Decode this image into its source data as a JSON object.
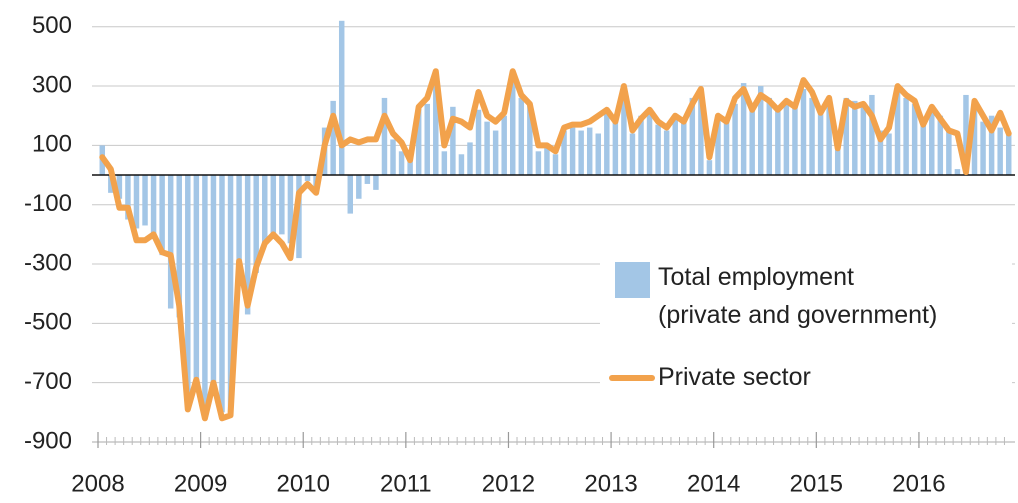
{
  "chart_data": {
    "type": "bar_line",
    "categories": [
      "2008",
      null,
      null,
      null,
      null,
      null,
      null,
      null,
      null,
      null,
      null,
      null,
      "2009",
      null,
      null,
      null,
      null,
      null,
      null,
      null,
      null,
      null,
      null,
      null,
      "2010",
      null,
      null,
      null,
      null,
      null,
      null,
      null,
      null,
      null,
      null,
      null,
      "2011",
      null,
      null,
      null,
      null,
      null,
      null,
      null,
      null,
      null,
      null,
      null,
      "2012",
      null,
      null,
      null,
      null,
      null,
      null,
      null,
      null,
      null,
      null,
      null,
      "2013",
      null,
      null,
      null,
      null,
      null,
      null,
      null,
      null,
      null,
      null,
      null,
      "2014",
      null,
      null,
      null,
      null,
      null,
      null,
      null,
      null,
      null,
      null,
      null,
      "2015",
      null,
      null,
      null,
      null,
      null,
      null,
      null,
      null,
      null,
      null,
      null,
      "2016",
      null,
      null,
      null,
      null,
      null,
      null,
      null,
      null,
      null,
      null
    ],
    "series": [
      {
        "name": "Total employment\n(private and government)",
        "type": "bar",
        "color": "#a3c6e6",
        "values": [
          100,
          -60,
          -80,
          -150,
          -180,
          -170,
          -200,
          -270,
          -450,
          -480,
          -770,
          -700,
          -790,
          -700,
          -800,
          -800,
          -350,
          -470,
          -330,
          -230,
          -210,
          -200,
          -230,
          -280,
          -20,
          -60,
          160,
          250,
          520,
          -130,
          -80,
          -30,
          -50,
          260,
          120,
          80,
          60,
          230,
          240,
          320,
          80,
          230,
          70,
          110,
          220,
          180,
          150,
          200,
          320,
          260,
          240,
          80,
          100,
          70,
          150,
          160,
          150,
          160,
          140,
          210,
          180,
          280,
          140,
          200,
          210,
          170,
          150,
          190,
          180,
          260,
          270,
          50,
          200,
          190,
          240,
          310,
          230,
          300,
          260,
          220,
          250,
          230,
          290,
          260,
          220,
          260,
          90,
          260,
          250,
          230,
          270,
          150,
          140,
          290,
          260,
          240,
          170,
          230,
          200,
          150,
          20,
          270,
          250,
          180,
          200,
          160,
          140
        ]
      },
      {
        "name": "Private sector",
        "type": "line",
        "color": "#f2a24c",
        "values": [
          60,
          20,
          -110,
          -110,
          -220,
          -220,
          -200,
          -260,
          -270,
          -440,
          -790,
          -690,
          -820,
          -700,
          -820,
          -810,
          -290,
          -440,
          -310,
          -230,
          -200,
          -230,
          -280,
          -60,
          -30,
          -60,
          100,
          200,
          100,
          120,
          110,
          120,
          120,
          200,
          140,
          110,
          50,
          230,
          260,
          350,
          100,
          190,
          180,
          160,
          280,
          200,
          180,
          210,
          350,
          270,
          240,
          100,
          100,
          80,
          160,
          170,
          170,
          180,
          200,
          220,
          180,
          300,
          150,
          190,
          220,
          180,
          160,
          200,
          180,
          240,
          290,
          60,
          200,
          180,
          260,
          290,
          220,
          270,
          250,
          220,
          250,
          230,
          320,
          280,
          210,
          260,
          90,
          250,
          230,
          240,
          200,
          120,
          160,
          300,
          270,
          250,
          170,
          230,
          190,
          150,
          140,
          10,
          250,
          200,
          150,
          210,
          140
        ]
      }
    ],
    "ylim": [
      -900,
      580
    ],
    "yticks": [
      500,
      300,
      100,
      -100,
      -300,
      -500,
      -700,
      -900
    ],
    "grid": true
  }
}
